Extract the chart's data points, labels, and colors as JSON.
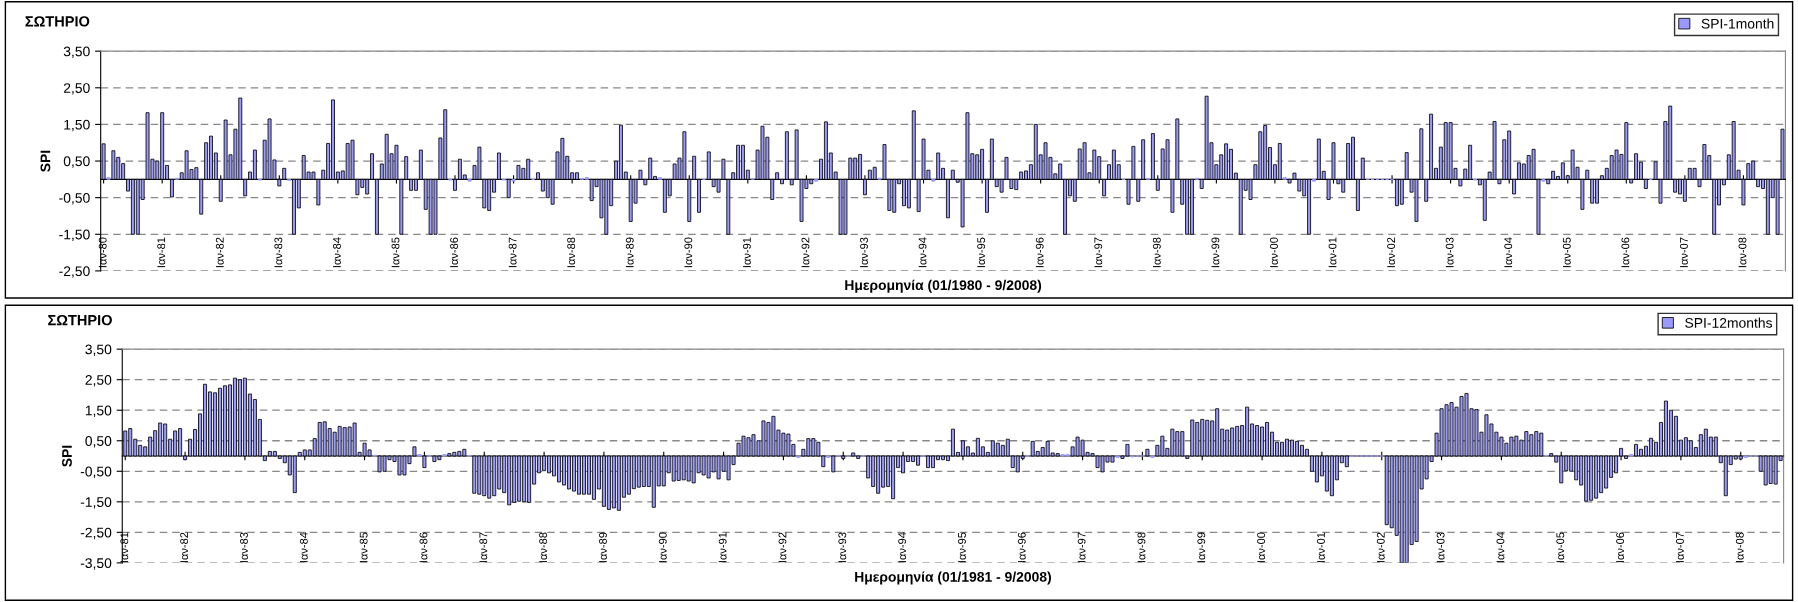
{
  "chart_data": [
    {
      "type": "bar",
      "title": "ΣΩΤΗΡΙΟ",
      "xlabel": "Ημερομηνία (01/1980 - 9/2008)",
      "ylabel": "SPI",
      "grid": "y",
      "legend": "top right",
      "ylim": [
        -2.5,
        3.5
      ],
      "yticks": [
        {
          "value": -2.5,
          "label": "-2,50"
        },
        {
          "value": -1.5,
          "label": "-1,50"
        },
        {
          "value": -0.5,
          "label": "-0,50"
        },
        {
          "value": 0.5,
          "label": "0,50"
        },
        {
          "value": 1.5,
          "label": "1,50"
        },
        {
          "value": 2.5,
          "label": "2,50"
        },
        {
          "value": 3.5,
          "label": "3,50"
        }
      ],
      "categories": [
        "Ιαν-80",
        null,
        null,
        null,
        null,
        null,
        null,
        null,
        null,
        null,
        null,
        null,
        "Ιαν-81",
        null,
        null,
        null,
        null,
        null,
        null,
        null,
        null,
        null,
        null,
        null,
        "Ιαν-82",
        null,
        null,
        null,
        null,
        null,
        null,
        null,
        null,
        null,
        null,
        null,
        "Ιαν-83",
        null,
        null,
        null,
        null,
        null,
        null,
        null,
        null,
        null,
        null,
        null,
        "Ιαν-84",
        null,
        null,
        null,
        null,
        null,
        null,
        null,
        null,
        null,
        null,
        null,
        "Ιαν-85",
        null,
        null,
        null,
        null,
        null,
        null,
        null,
        null,
        null,
        null,
        null,
        "Ιαν-86",
        null,
        null,
        null,
        null,
        null,
        null,
        null,
        null,
        null,
        null,
        null,
        "Ιαν-87",
        null,
        null,
        null,
        null,
        null,
        null,
        null,
        null,
        null,
        null,
        null,
        "Ιαν-88",
        null,
        null,
        null,
        null,
        null,
        null,
        null,
        null,
        null,
        null,
        null,
        "Ιαν-89",
        null,
        null,
        null,
        null,
        null,
        null,
        null,
        null,
        null,
        null,
        null,
        "Ιαν-90",
        null,
        null,
        null,
        null,
        null,
        null,
        null,
        null,
        null,
        null,
        null,
        "Ιαν-91",
        null,
        null,
        null,
        null,
        null,
        null,
        null,
        null,
        null,
        null,
        null,
        "Ιαν-92",
        null,
        null,
        null,
        null,
        null,
        null,
        null,
        null,
        null,
        null,
        null,
        "Ιαν-93",
        null,
        null,
        null,
        null,
        null,
        null,
        null,
        null,
        null,
        null,
        null,
        "Ιαν-94",
        null,
        null,
        null,
        null,
        null,
        null,
        null,
        null,
        null,
        null,
        null,
        "Ιαν-95",
        null,
        null,
        null,
        null,
        null,
        null,
        null,
        null,
        null,
        null,
        null,
        "Ιαν-96",
        null,
        null,
        null,
        null,
        null,
        null,
        null,
        null,
        null,
        null,
        null,
        "Ιαν-97",
        null,
        null,
        null,
        null,
        null,
        null,
        null,
        null,
        null,
        null,
        null,
        "Ιαν-98",
        null,
        null,
        null,
        null,
        null,
        null,
        null,
        null,
        null,
        null,
        null,
        "Ιαν-99",
        null,
        null,
        null,
        null,
        null,
        null,
        null,
        null,
        null,
        null,
        null,
        "Ιαν-00",
        null,
        null,
        null,
        null,
        null,
        null,
        null,
        null,
        null,
        null,
        null,
        "Ιαν-01",
        null,
        null,
        null,
        null,
        null,
        null,
        null,
        null,
        null,
        null,
        null,
        "Ιαν-02",
        null,
        null,
        null,
        null,
        null,
        null,
        null,
        null,
        null,
        null,
        null,
        "Ιαν-03",
        null,
        null,
        null,
        null,
        null,
        null,
        null,
        null,
        null,
        null,
        null,
        "Ιαν-04",
        null,
        null,
        null,
        null,
        null,
        null,
        null,
        null,
        null,
        null,
        null,
        "Ιαν-05",
        null,
        null,
        null,
        null,
        null,
        null,
        null,
        null,
        null,
        null,
        null,
        "Ιαν-06",
        null,
        null,
        null,
        null,
        null,
        null,
        null,
        null,
        null,
        null,
        null,
        "Ιαν-07",
        null,
        null,
        null,
        null,
        null,
        null,
        null,
        null,
        null,
        null,
        null,
        "Ιαν-08",
        null,
        null,
        null,
        null,
        null,
        null,
        null,
        null
      ],
      "series": [
        {
          "name": "SPI-1month",
          "color": "#9999ff",
          "values": [
            0.97,
            0.05,
            0.78,
            0.6,
            0.43,
            -0.32,
            -1.5,
            -1.5,
            -0.55,
            1.82,
            0.55,
            0.5,
            1.82,
            0.38,
            -0.48,
            0.03,
            0.18,
            0.78,
            0.27,
            0.32,
            -0.95,
            1.0,
            1.18,
            0.72,
            -0.6,
            1.62,
            0.67,
            1.37,
            2.22,
            -0.45,
            0.2,
            0.8,
            -0.02,
            1.07,
            1.65,
            0.53,
            -0.18,
            0.3,
            -0.03,
            -1.5,
            -0.78,
            0.65,
            0.2,
            0.2,
            -0.7,
            0.25,
            0.98,
            2.17,
            0.2,
            0.23,
            0.98,
            1.07,
            -0.42,
            -0.22,
            -0.4,
            0.7,
            -1.5,
            0.42,
            1.23,
            0.7,
            0.93,
            -1.5,
            0.62,
            -0.3,
            -0.3,
            0.8,
            -0.82,
            -1.5,
            -1.5,
            1.13,
            1.9,
            -0.02,
            -0.3,
            0.55,
            0.12,
            -0.05,
            0.38,
            0.88,
            -0.78,
            -0.85,
            -0.35,
            0.72,
            -0.02,
            -0.5,
            -0.05,
            0.38,
            0.3,
            0.55,
            0.0,
            0.18,
            -0.32,
            -0.5,
            -0.68,
            0.75,
            1.12,
            0.63,
            0.18,
            0.18,
            0.02,
            0.05,
            -0.58,
            -0.2,
            -1.05,
            -1.5,
            -0.72,
            0.5,
            1.48,
            0.2,
            -1.15,
            -0.65,
            0.25,
            -0.15,
            0.58,
            0.08,
            0.05,
            -0.9,
            -0.45,
            0.42,
            0.58,
            1.3,
            -1.15,
            0.63,
            -0.9,
            0.0,
            0.75,
            -0.2,
            -0.35,
            0.55,
            -1.5,
            0.18,
            0.93,
            0.93,
            0.25,
            0.02,
            0.8,
            1.45,
            1.15,
            -0.55,
            0.18,
            -0.12,
            1.3,
            -0.15,
            1.35,
            -1.15,
            -0.25,
            -0.12,
            -0.05,
            0.55,
            1.57,
            0.72,
            0.2,
            -1.5,
            -1.5,
            0.58,
            0.58,
            0.68,
            -0.42,
            0.25,
            0.33,
            0.03,
            0.95,
            -0.85,
            -0.9,
            -0.12,
            -0.72,
            -0.78,
            1.87,
            -0.88,
            1.1,
            0.25,
            -0.05,
            0.72,
            0.3,
            -1.05,
            0.25,
            -0.08,
            -1.3,
            1.82,
            0.7,
            0.67,
            0.82,
            -0.9,
            1.1,
            -0.2,
            -0.35,
            0.6,
            -0.25,
            -0.28,
            0.2,
            0.23,
            0.4,
            1.5,
            0.67,
            1.0,
            0.6,
            0.15,
            0.42,
            -1.5,
            -0.45,
            -0.6,
            0.83,
            1.0,
            0.18,
            0.8,
            0.62,
            -0.45,
            0.4,
            0.8,
            0.4,
            0.0,
            -0.68,
            0.9,
            -0.6,
            1.08,
            0.02,
            1.25,
            -0.3,
            0.83,
            1.08,
            -0.9,
            1.65,
            -0.68,
            -1.5,
            -1.5,
            0.03,
            -0.25,
            2.27,
            1.0,
            0.4,
            0.67,
            0.97,
            0.82,
            0.17,
            -1.5,
            -0.3,
            -0.55,
            0.4,
            1.3,
            1.47,
            0.87,
            0.4,
            0.98,
            0.05,
            -0.1,
            0.17,
            -0.32,
            -0.45,
            -1.5,
            -0.05,
            1.1,
            0.22,
            -0.55,
            1.0,
            -0.12,
            -0.35,
            0.98,
            1.15,
            -0.85,
            0.58,
            0.0,
            0.0,
            0.0,
            0.0,
            0.0,
            0.0,
            -0.72,
            -0.68,
            0.73,
            -0.35,
            -1.15,
            1.38,
            -0.6,
            1.78,
            0.3,
            0.88,
            1.55,
            1.55,
            0.3,
            -0.18,
            0.28,
            0.93,
            -0.02,
            -0.15,
            -1.12,
            0.2,
            1.58,
            -0.12,
            1.08,
            1.32,
            -0.4,
            0.45,
            0.42,
            0.65,
            0.82,
            -1.5,
            -0.05,
            -0.12,
            0.22,
            0.08,
            0.45,
            0.1,
            0.8,
            0.33,
            -0.82,
            0.25,
            -0.65,
            -0.65,
            0.1,
            0.3,
            0.65,
            0.8,
            0.68,
            1.55,
            -0.1,
            0.7,
            0.47,
            -0.25,
            0.0,
            0.48,
            -0.65,
            1.58,
            2.0,
            -0.35,
            -0.4,
            -0.6,
            0.3,
            0.3,
            -0.2,
            0.95,
            0.65,
            -1.5,
            -0.7,
            -0.15,
            0.67,
            1.58,
            0.25,
            -0.7,
            0.43,
            0.5,
            -0.2,
            -0.25,
            -1.5,
            -0.5,
            -1.5,
            1.37
          ]
        }
      ]
    },
    {
      "type": "bar",
      "title": "ΣΩΤΗΡΙΟ",
      "xlabel": "Ημερομηνία (01/1981 - 9/2008)",
      "ylabel": "SPI",
      "grid": "y",
      "legend": "top right",
      "ylim": [
        -3.5,
        3.5
      ],
      "yticks": [
        {
          "value": -3.5,
          "label": "-3,50"
        },
        {
          "value": -2.5,
          "label": "-2,50"
        },
        {
          "value": -1.5,
          "label": "-1,50"
        },
        {
          "value": -0.5,
          "label": "-0,50"
        },
        {
          "value": 0.5,
          "label": "0,50"
        },
        {
          "value": 1.5,
          "label": "1,50"
        },
        {
          "value": 2.5,
          "label": "2,50"
        },
        {
          "value": 3.5,
          "label": "3,50"
        }
      ],
      "categories": [
        "Ιαν-81",
        null,
        null,
        null,
        null,
        null,
        null,
        null,
        null,
        null,
        null,
        null,
        "Ιαν-82",
        null,
        null,
        null,
        null,
        null,
        null,
        null,
        null,
        null,
        null,
        null,
        "Ιαν-83",
        null,
        null,
        null,
        null,
        null,
        null,
        null,
        null,
        null,
        null,
        null,
        "Ιαν-84",
        null,
        null,
        null,
        null,
        null,
        null,
        null,
        null,
        null,
        null,
        null,
        "Ιαν-85",
        null,
        null,
        null,
        null,
        null,
        null,
        null,
        null,
        null,
        null,
        null,
        "Ιαν-86",
        null,
        null,
        null,
        null,
        null,
        null,
        null,
        null,
        null,
        null,
        null,
        "Ιαν-87",
        null,
        null,
        null,
        null,
        null,
        null,
        null,
        null,
        null,
        null,
        null,
        "Ιαν-88",
        null,
        null,
        null,
        null,
        null,
        null,
        null,
        null,
        null,
        null,
        null,
        "Ιαν-89",
        null,
        null,
        null,
        null,
        null,
        null,
        null,
        null,
        null,
        null,
        null,
        "Ιαν-90",
        null,
        null,
        null,
        null,
        null,
        null,
        null,
        null,
        null,
        null,
        null,
        "Ιαν-91",
        null,
        null,
        null,
        null,
        null,
        null,
        null,
        null,
        null,
        null,
        null,
        "Ιαν-92",
        null,
        null,
        null,
        null,
        null,
        null,
        null,
        null,
        null,
        null,
        null,
        "Ιαν-93",
        null,
        null,
        null,
        null,
        null,
        null,
        null,
        null,
        null,
        null,
        null,
        "Ιαν-94",
        null,
        null,
        null,
        null,
        null,
        null,
        null,
        null,
        null,
        null,
        null,
        "Ιαν-95",
        null,
        null,
        null,
        null,
        null,
        null,
        null,
        null,
        null,
        null,
        null,
        "Ιαν-96",
        null,
        null,
        null,
        null,
        null,
        null,
        null,
        null,
        null,
        null,
        null,
        "Ιαν-97",
        null,
        null,
        null,
        null,
        null,
        null,
        null,
        null,
        null,
        null,
        null,
        "Ιαν-98",
        null,
        null,
        null,
        null,
        null,
        null,
        null,
        null,
        null,
        null,
        null,
        "Ιαν-99",
        null,
        null,
        null,
        null,
        null,
        null,
        null,
        null,
        null,
        null,
        null,
        "Ιαν-00",
        null,
        null,
        null,
        null,
        null,
        null,
        null,
        null,
        null,
        null,
        null,
        "Ιαν-01",
        null,
        null,
        null,
        null,
        null,
        null,
        null,
        null,
        null,
        null,
        null,
        "Ιαν-02",
        null,
        null,
        null,
        null,
        null,
        null,
        null,
        null,
        null,
        null,
        null,
        "Ιαν-03",
        null,
        null,
        null,
        null,
        null,
        null,
        null,
        null,
        null,
        null,
        null,
        "Ιαν-04",
        null,
        null,
        null,
        null,
        null,
        null,
        null,
        null,
        null,
        null,
        null,
        "Ιαν-05",
        null,
        null,
        null,
        null,
        null,
        null,
        null,
        null,
        null,
        null,
        null,
        "Ιαν-06",
        null,
        null,
        null,
        null,
        null,
        null,
        null,
        null,
        null,
        null,
        null,
        "Ιαν-07",
        null,
        null,
        null,
        null,
        null,
        null,
        null,
        null,
        null,
        null,
        null,
        "Ιαν-08",
        null,
        null,
        null,
        null,
        null,
        null,
        null,
        null
      ],
      "series": [
        {
          "name": "SPI-12months",
          "color": "#9999ff",
          "values": [
            0.82,
            0.9,
            0.55,
            0.35,
            0.3,
            0.62,
            0.83,
            1.08,
            1.05,
            0.55,
            0.82,
            0.9,
            -0.12,
            0.55,
            0.87,
            1.38,
            2.35,
            2.1,
            2.07,
            2.22,
            2.3,
            2.33,
            2.55,
            2.5,
            2.55,
            2.03,
            1.85,
            1.2,
            -0.15,
            0.15,
            0.15,
            -0.08,
            -0.22,
            -0.62,
            -1.2,
            0.12,
            0.2,
            0.2,
            0.57,
            1.1,
            1.12,
            0.9,
            0.78,
            0.97,
            0.93,
            0.95,
            1.08,
            0.12,
            0.42,
            0.2,
            0.02,
            -0.52,
            -0.5,
            -0.12,
            -0.18,
            -0.62,
            -0.62,
            -0.25,
            0.3,
            0.05,
            -0.38,
            0.0,
            -0.18,
            -0.12,
            0.05,
            0.08,
            0.12,
            0.15,
            0.22,
            0.02,
            -1.22,
            -1.25,
            -1.3,
            -1.38,
            -1.3,
            -1.08,
            -1.2,
            -1.6,
            -1.52,
            -1.48,
            -1.5,
            -1.52,
            -0.92,
            -0.55,
            -0.48,
            -0.55,
            -0.65,
            -0.85,
            -0.95,
            -1.08,
            -1.15,
            -1.25,
            -1.25,
            -1.25,
            -1.42,
            -1.08,
            -1.65,
            -1.75,
            -1.7,
            -1.78,
            -1.35,
            -1.25,
            -1.07,
            -1.02,
            -1.0,
            -1.0,
            -1.68,
            -0.98,
            -0.98,
            -0.55,
            -0.82,
            -0.8,
            -0.78,
            -0.82,
            -0.88,
            -0.55,
            -0.62,
            -0.72,
            -0.52,
            -0.75,
            -0.5,
            -0.78,
            -0.28,
            0.42,
            0.65,
            0.6,
            0.7,
            0.5,
            1.15,
            1.1,
            1.3,
            0.85,
            0.75,
            0.72,
            0.38,
            -0.05,
            0.22,
            0.57,
            0.57,
            0.45,
            -0.35,
            -0.05,
            -0.52,
            0.02,
            -0.08,
            0.0,
            0.1,
            -0.08,
            0.0,
            -0.72,
            -1.0,
            -1.22,
            -1.02,
            -1.0,
            -1.4,
            -0.38,
            -0.55,
            -0.18,
            -0.18,
            -0.3,
            0.0,
            -0.38,
            -0.38,
            -0.12,
            -0.12,
            -0.15,
            0.88,
            0.12,
            0.5,
            0.3,
            0.1,
            0.58,
            0.3,
            0.12,
            0.5,
            0.42,
            0.35,
            0.55,
            -0.38,
            -0.52,
            -0.08,
            0.0,
            0.48,
            0.15,
            0.28,
            0.48,
            0.1,
            0.08,
            0.05,
            0.05,
            0.3,
            0.62,
            0.52,
            0.12,
            0.08,
            -0.38,
            -0.52,
            -0.2,
            -0.2,
            -0.05,
            -0.08,
            0.38,
            -0.03,
            0.0,
            0.0,
            0.22,
            -0.05,
            0.35,
            0.65,
            0.25,
            0.88,
            0.8,
            0.8,
            -0.08,
            1.18,
            1.1,
            1.2,
            1.17,
            1.15,
            1.55,
            0.88,
            0.85,
            0.92,
            0.97,
            1.0,
            1.6,
            1.05,
            1.0,
            0.95,
            1.1,
            0.78,
            0.45,
            0.45,
            0.55,
            0.52,
            0.48,
            0.35,
            0.22,
            -0.5,
            -0.85,
            -0.65,
            -1.15,
            -1.3,
            -0.78,
            -0.22,
            -0.35,
            -0.02,
            0.0,
            0.0,
            0.0,
            0.0,
            0.0,
            0.0,
            -2.25,
            -2.35,
            -2.6,
            -3.5,
            -3.5,
            -2.9,
            -2.8,
            -1.08,
            -0.75,
            -0.18,
            0.75,
            1.55,
            1.68,
            1.75,
            1.6,
            1.95,
            2.05,
            1.55,
            1.52,
            0.78,
            1.35,
            1.05,
            0.78,
            0.62,
            0.42,
            0.62,
            0.65,
            0.52,
            0.8,
            0.7,
            0.8,
            0.75,
            0.02,
            0.08,
            -0.2,
            -0.88,
            -0.48,
            -0.5,
            -0.78,
            -0.95,
            -1.48,
            -1.45,
            -1.38,
            -1.2,
            -1.05,
            -0.7,
            -0.55,
            0.25,
            -0.08,
            0.05,
            0.38,
            0.22,
            0.32,
            0.58,
            0.45,
            1.1,
            1.8,
            1.5,
            1.3,
            0.52,
            0.6,
            0.5,
            0.28,
            0.7,
            0.88,
            0.62,
            0.62,
            -0.22,
            -1.3,
            -0.28,
            -0.1,
            -0.1,
            -0.05,
            0.0,
            0.0,
            -0.5,
            -0.95,
            -0.9,
            -0.92,
            -0.15
          ]
        }
      ]
    }
  ]
}
